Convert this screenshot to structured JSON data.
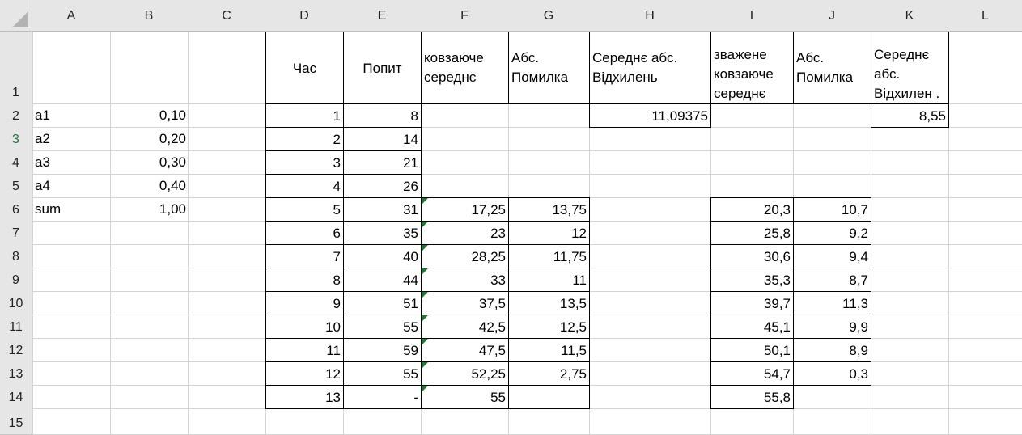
{
  "columns": [
    "A",
    "B",
    "C",
    "D",
    "E",
    "F",
    "G",
    "H",
    "I",
    "J",
    "K",
    "L"
  ],
  "rows": [
    "1",
    "2",
    "3",
    "4",
    "5",
    "6",
    "7",
    "8",
    "9",
    "10",
    "11",
    "12",
    "13",
    "14",
    "15"
  ],
  "params": [
    {
      "label": "a1",
      "value": "0,10"
    },
    {
      "label": "a2",
      "value": "0,20"
    },
    {
      "label": "a3",
      "value": "0,30"
    },
    {
      "label": "a4",
      "value": "0,40"
    },
    {
      "label": "sum",
      "value": "1,00"
    }
  ],
  "headers": {
    "time": "Час",
    "demand": "Попит",
    "moving_avg": "ковзаюче середнє",
    "abs_error": "Абс. Помилка",
    "mad": "Середнє абс. Відхилень",
    "weighted_avg": "зважене ковзаюче середнє",
    "abs_error2": "Абс. Помилка",
    "mad2": "Середнє абс. Відхилен ."
  },
  "mad_value": "11,09375",
  "mad2_value": "8,55",
  "table": [
    {
      "t": "1",
      "d": "8",
      "f": "",
      "g": "",
      "i": "",
      "j": ""
    },
    {
      "t": "2",
      "d": "14",
      "f": "",
      "g": "",
      "i": "",
      "j": ""
    },
    {
      "t": "3",
      "d": "21",
      "f": "",
      "g": "",
      "i": "",
      "j": ""
    },
    {
      "t": "4",
      "d": "26",
      "f": "",
      "g": "",
      "i": "",
      "j": ""
    },
    {
      "t": "5",
      "d": "31",
      "f": "17,25",
      "g": "13,75",
      "i": "20,3",
      "j": "10,7"
    },
    {
      "t": "6",
      "d": "35",
      "f": "23",
      "g": "12",
      "i": "25,8",
      "j": "9,2"
    },
    {
      "t": "7",
      "d": "40",
      "f": "28,25",
      "g": "11,75",
      "i": "30,6",
      "j": "9,4"
    },
    {
      "t": "8",
      "d": "44",
      "f": "33",
      "g": "11",
      "i": "35,3",
      "j": "8,7"
    },
    {
      "t": "9",
      "d": "51",
      "f": "37,5",
      "g": "13,5",
      "i": "39,7",
      "j": "11,3"
    },
    {
      "t": "10",
      "d": "55",
      "f": "42,5",
      "g": "12,5",
      "i": "45,1",
      "j": "9,9"
    },
    {
      "t": "11",
      "d": "59",
      "f": "47,5",
      "g": "11,5",
      "i": "50,1",
      "j": "8,9"
    },
    {
      "t": "12",
      "d": "55",
      "f": "52,25",
      "g": "2,75",
      "i": "54,7",
      "j": "0,3"
    },
    {
      "t": "13",
      "d": "-",
      "f": "55",
      "g": "",
      "i": "55,8",
      "j": ""
    }
  ],
  "selected_row": "3",
  "colors": {
    "header_bg": "#e6e6e6",
    "gridline": "#d4d4d4",
    "selected": "#217346",
    "note_triangle": "#1d7a2e"
  }
}
